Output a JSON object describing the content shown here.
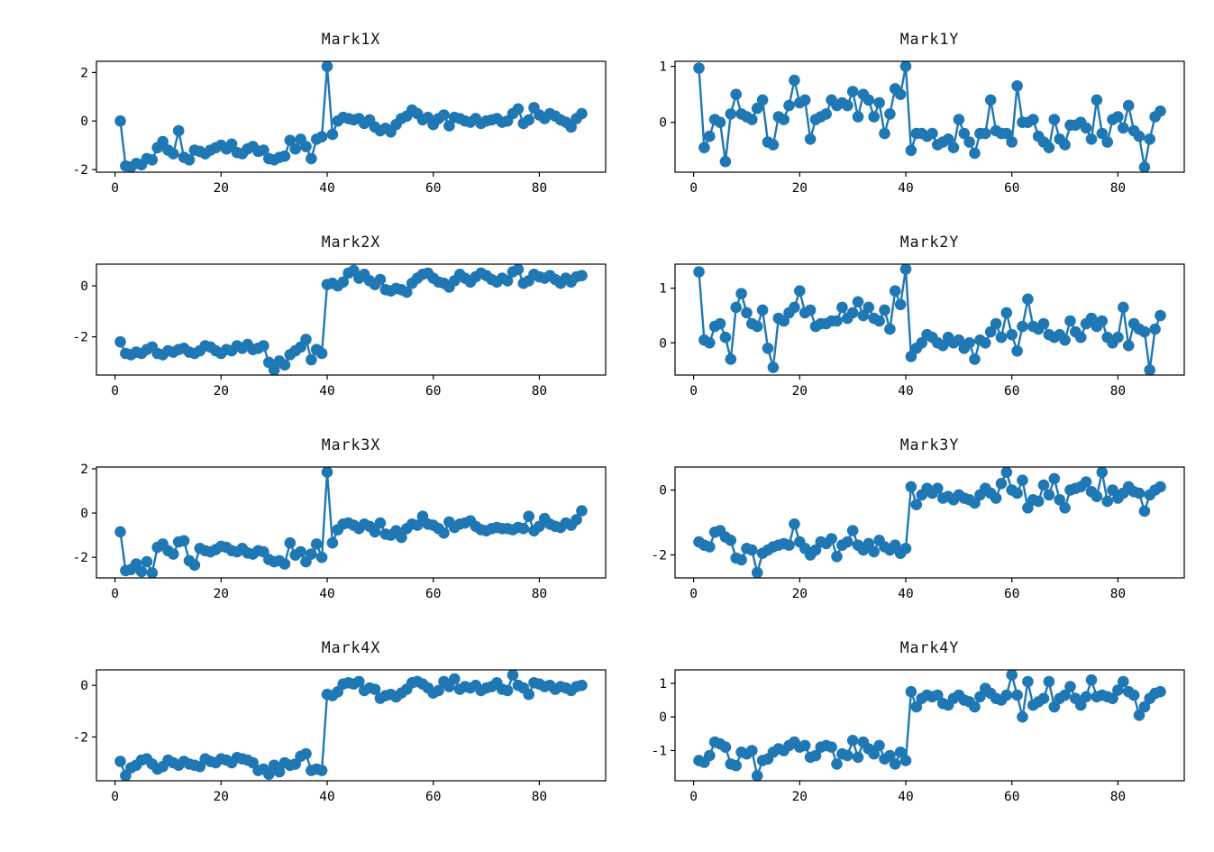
{
  "figure": {
    "background": "#ffffff",
    "series_color": "#1f77b4",
    "axes_color": "#000000",
    "marker": "circle",
    "marker_radius": 6.3,
    "line_width": 2.4
  },
  "chart_data": [
    {
      "type": "line",
      "title": "Mark1X",
      "xlabel": "",
      "ylabel": "",
      "grid": false,
      "legend": null,
      "x_start": 1,
      "xticks": [
        0,
        20,
        40,
        60,
        80
      ],
      "yticks": [
        -2,
        0,
        2
      ],
      "xlim": [
        -3.5,
        92.5
      ],
      "ylim": [
        -2.11,
        2.46
      ],
      "values": [
        0.0,
        -1.85,
        -1.9,
        -1.75,
        -1.8,
        -1.55,
        -1.6,
        -1.1,
        -0.85,
        -1.2,
        -1.35,
        -0.4,
        -1.5,
        -1.6,
        -1.2,
        -1.25,
        -1.35,
        -1.2,
        -1.1,
        -1.0,
        -1.15,
        -0.95,
        -1.3,
        -1.35,
        -1.15,
        -1.05,
        -1.25,
        -1.2,
        -1.55,
        -1.6,
        -1.5,
        -1.45,
        -0.8,
        -1.15,
        -0.75,
        -1.05,
        -1.55,
        -0.75,
        -0.65,
        2.25,
        -0.55,
        0.0,
        0.15,
        0.1,
        0.05,
        0.1,
        -0.1,
        0.05,
        -0.25,
        -0.4,
        -0.3,
        -0.45,
        -0.15,
        0.1,
        0.2,
        0.45,
        0.3,
        0.05,
        0.15,
        -0.15,
        0.1,
        0.25,
        -0.2,
        0.15,
        0.1,
        0.0,
        -0.05,
        0.1,
        -0.1,
        0.0,
        0.05,
        0.1,
        -0.05,
        0.0,
        0.3,
        0.5,
        -0.1,
        0.05,
        0.55,
        0.25,
        0.1,
        0.3,
        0.2,
        0.05,
        -0.05,
        -0.25,
        0.1,
        0.3
      ]
    },
    {
      "type": "line",
      "title": "Mark1Y",
      "xlabel": "",
      "ylabel": "",
      "grid": false,
      "legend": null,
      "x_start": 1,
      "xticks": [
        0,
        20,
        40,
        60,
        80
      ],
      "yticks": [
        0,
        1
      ],
      "xlim": [
        -3.5,
        92.5
      ],
      "ylim": [
        -0.89,
        1.09
      ],
      "values": [
        0.97,
        -0.45,
        -0.25,
        0.05,
        0.0,
        -0.7,
        0.15,
        0.5,
        0.15,
        0.1,
        0.05,
        0.25,
        0.4,
        -0.35,
        -0.4,
        0.1,
        0.05,
        0.3,
        0.75,
        0.35,
        0.4,
        -0.3,
        0.05,
        0.1,
        0.15,
        0.4,
        0.3,
        0.35,
        0.3,
        0.55,
        0.1,
        0.5,
        0.4,
        0.1,
        0.35,
        -0.2,
        0.15,
        0.6,
        0.5,
        1.0,
        -0.5,
        -0.2,
        -0.2,
        -0.25,
        -0.2,
        -0.4,
        -0.35,
        -0.3,
        -0.45,
        0.05,
        -0.2,
        -0.35,
        -0.55,
        -0.2,
        -0.2,
        0.4,
        -0.15,
        -0.2,
        -0.2,
        -0.35,
        0.65,
        0.0,
        0.0,
        0.05,
        -0.25,
        -0.35,
        -0.45,
        0.05,
        -0.3,
        -0.4,
        -0.05,
        -0.05,
        0.0,
        -0.1,
        -0.3,
        0.4,
        -0.2,
        -0.35,
        0.05,
        0.1,
        -0.1,
        0.3,
        -0.15,
        -0.25,
        -0.8,
        -0.3,
        0.1,
        0.2
      ]
    },
    {
      "type": "line",
      "title": "Mark2X",
      "xlabel": "",
      "ylabel": "",
      "grid": false,
      "legend": null,
      "x_start": 1,
      "xticks": [
        0,
        20,
        40,
        60,
        80
      ],
      "yticks": [
        -2,
        0
      ],
      "xlim": [
        -3.5,
        92.5
      ],
      "ylim": [
        -3.5,
        0.85
      ],
      "values": [
        -2.2,
        -2.65,
        -2.7,
        -2.6,
        -2.65,
        -2.5,
        -2.4,
        -2.65,
        -2.7,
        -2.55,
        -2.6,
        -2.5,
        -2.45,
        -2.6,
        -2.65,
        -2.55,
        -2.35,
        -2.4,
        -2.55,
        -2.65,
        -2.5,
        -2.55,
        -2.35,
        -2.45,
        -2.3,
        -2.5,
        -2.45,
        -2.35,
        -3.0,
        -3.3,
        -2.95,
        -3.1,
        -2.7,
        -2.55,
        -2.4,
        -2.1,
        -2.9,
        -2.5,
        -2.65,
        0.05,
        0.1,
        0.0,
        0.15,
        0.5,
        0.6,
        0.3,
        0.45,
        0.2,
        0.05,
        0.25,
        -0.15,
        -0.2,
        -0.1,
        -0.15,
        -0.25,
        0.1,
        0.3,
        0.45,
        0.5,
        0.3,
        0.15,
        0.1,
        -0.05,
        0.2,
        0.45,
        0.3,
        0.15,
        0.35,
        0.5,
        0.4,
        0.25,
        0.15,
        0.3,
        0.2,
        0.55,
        0.65,
        0.1,
        0.2,
        0.45,
        0.35,
        0.3,
        0.4,
        0.25,
        0.1,
        0.3,
        0.15,
        0.35,
        0.4
      ]
    },
    {
      "type": "line",
      "title": "Mark2Y",
      "xlabel": "",
      "ylabel": "",
      "grid": false,
      "legend": null,
      "x_start": 1,
      "xticks": [
        0,
        20,
        40,
        60,
        80
      ],
      "yticks": [
        0,
        1
      ],
      "xlim": [
        -3.5,
        92.5
      ],
      "ylim": [
        -0.59,
        1.44
      ],
      "values": [
        1.3,
        0.05,
        0.0,
        0.3,
        0.35,
        0.1,
        -0.3,
        0.65,
        0.9,
        0.55,
        0.35,
        0.3,
        0.6,
        -0.1,
        -0.45,
        0.45,
        0.4,
        0.55,
        0.65,
        0.95,
        0.55,
        0.6,
        0.3,
        0.35,
        0.35,
        0.4,
        0.4,
        0.65,
        0.45,
        0.55,
        0.75,
        0.5,
        0.65,
        0.45,
        0.4,
        0.6,
        0.25,
        0.95,
        0.7,
        1.35,
        -0.25,
        -0.1,
        0.0,
        0.15,
        0.1,
        0.0,
        -0.05,
        0.1,
        0.0,
        0.05,
        -0.1,
        0.0,
        -0.3,
        0.05,
        0.0,
        0.2,
        0.35,
        0.1,
        0.55,
        0.15,
        -0.15,
        0.3,
        0.8,
        0.3,
        0.25,
        0.35,
        0.15,
        0.1,
        0.15,
        0.05,
        0.4,
        0.2,
        0.1,
        0.35,
        0.45,
        0.3,
        0.4,
        0.1,
        0.0,
        0.1,
        0.65,
        -0.05,
        0.35,
        0.25,
        0.2,
        -0.5,
        0.25,
        0.5
      ]
    },
    {
      "type": "line",
      "title": "Mark3X",
      "xlabel": "",
      "ylabel": "",
      "grid": false,
      "legend": null,
      "x_start": 1,
      "xticks": [
        0,
        20,
        40,
        60,
        80
      ],
      "yticks": [
        -2,
        0,
        2
      ],
      "xlim": [
        -3.5,
        92.5
      ],
      "ylim": [
        -2.93,
        2.08
      ],
      "values": [
        -0.85,
        -2.6,
        -2.55,
        -2.3,
        -2.65,
        -2.2,
        -2.7,
        -1.55,
        -1.4,
        -1.7,
        -1.85,
        -1.3,
        -1.25,
        -2.15,
        -2.35,
        -1.6,
        -1.7,
        -1.75,
        -1.65,
        -1.5,
        -1.55,
        -1.7,
        -1.75,
        -1.6,
        -1.8,
        -1.85,
        -1.7,
        -1.75,
        -2.1,
        -2.2,
        -2.15,
        -2.3,
        -1.35,
        -1.9,
        -1.75,
        -2.2,
        -1.85,
        -1.4,
        -2.0,
        1.85,
        -1.35,
        -0.75,
        -0.5,
        -0.45,
        -0.55,
        -0.7,
        -0.5,
        -0.6,
        -0.85,
        -0.45,
        -0.95,
        -1.0,
        -0.8,
        -1.1,
        -0.7,
        -0.5,
        -0.55,
        -0.15,
        -0.5,
        -0.55,
        -0.7,
        -0.9,
        -0.4,
        -0.65,
        -0.5,
        -0.45,
        -0.35,
        -0.6,
        -0.75,
        -0.8,
        -0.7,
        -0.65,
        -0.7,
        -0.7,
        -0.75,
        -0.65,
        -0.7,
        -0.15,
        -0.8,
        -0.6,
        -0.25,
        -0.5,
        -0.6,
        -0.65,
        -0.45,
        -0.55,
        -0.3,
        0.1
      ]
    },
    {
      "type": "line",
      "title": "Mark3Y",
      "xlabel": "",
      "ylabel": "",
      "grid": false,
      "legend": null,
      "x_start": 1,
      "xticks": [
        0,
        20,
        40,
        60,
        80
      ],
      "yticks": [
        -2,
        0
      ],
      "xlim": [
        -3.5,
        92.5
      ],
      "ylim": [
        -2.71,
        0.71
      ],
      "values": [
        -1.6,
        -1.7,
        -1.75,
        -1.3,
        -1.25,
        -1.45,
        -1.55,
        -2.1,
        -2.15,
        -1.8,
        -1.85,
        -2.55,
        -1.95,
        -1.85,
        -1.75,
        -1.7,
        -1.65,
        -1.7,
        -1.05,
        -1.6,
        -1.8,
        -2.0,
        -1.85,
        -1.6,
        -1.65,
        -1.5,
        -2.05,
        -1.7,
        -1.6,
        -1.25,
        -1.7,
        -1.85,
        -1.65,
        -1.9,
        -1.55,
        -1.75,
        -1.85,
        -1.7,
        -1.95,
        -1.8,
        0.1,
        -0.45,
        -0.15,
        0.05,
        -0.1,
        0.05,
        -0.25,
        -0.2,
        -0.3,
        -0.15,
        -0.25,
        -0.3,
        -0.4,
        -0.15,
        0.05,
        -0.1,
        -0.25,
        0.2,
        0.55,
        0.0,
        -0.1,
        0.3,
        -0.55,
        -0.3,
        -0.35,
        0.15,
        -0.15,
        0.35,
        -0.3,
        -0.55,
        0.0,
        0.05,
        0.1,
        0.25,
        -0.05,
        -0.2,
        0.55,
        -0.35,
        0.0,
        -0.25,
        -0.1,
        0.1,
        -0.05,
        -0.1,
        -0.65,
        -0.15,
        0.0,
        0.1
      ]
    },
    {
      "type": "line",
      "title": "Mark4X",
      "xlabel": "",
      "ylabel": "",
      "grid": false,
      "legend": null,
      "x_start": 1,
      "xticks": [
        0,
        20,
        40,
        60,
        80
      ],
      "yticks": [
        -2,
        0
      ],
      "xlim": [
        -3.5,
        92.5
      ],
      "ylim": [
        -3.7,
        0.6
      ],
      "values": [
        -2.95,
        -3.5,
        -3.2,
        -3.1,
        -2.9,
        -2.85,
        -3.05,
        -3.25,
        -3.15,
        -2.9,
        -3.0,
        -3.1,
        -2.95,
        -3.05,
        -3.1,
        -3.15,
        -2.85,
        -2.95,
        -3.0,
        -2.85,
        -2.9,
        -3.0,
        -2.8,
        -2.85,
        -2.9,
        -3.0,
        -3.3,
        -3.25,
        -3.45,
        -3.1,
        -3.35,
        -3.0,
        -3.1,
        -3.05,
        -2.75,
        -2.65,
        -3.3,
        -3.25,
        -3.3,
        -0.35,
        -0.4,
        -0.25,
        0.05,
        0.1,
        0.05,
        0.15,
        -0.2,
        -0.1,
        -0.15,
        -0.5,
        -0.4,
        -0.35,
        -0.45,
        -0.3,
        -0.15,
        0.1,
        0.15,
        0.05,
        -0.1,
        -0.3,
        -0.2,
        0.15,
        -0.05,
        0.25,
        -0.15,
        -0.05,
        -0.1,
        0.0,
        -0.2,
        -0.1,
        -0.05,
        0.1,
        -0.15,
        -0.2,
        0.4,
        0.0,
        -0.1,
        -0.35,
        0.1,
        0.05,
        -0.05,
        0.0,
        -0.15,
        -0.05,
        -0.1,
        -0.2,
        -0.05,
        0.0
      ]
    },
    {
      "type": "line",
      "title": "Mark4Y",
      "xlabel": "",
      "ylabel": "",
      "grid": false,
      "legend": null,
      "x_start": 1,
      "xticks": [
        0,
        20,
        40,
        60,
        80
      ],
      "yticks": [
        -1,
        0,
        1
      ],
      "xlim": [
        -3.5,
        92.5
      ],
      "ylim": [
        -1.9,
        1.4
      ],
      "values": [
        -1.3,
        -1.35,
        -1.15,
        -0.75,
        -0.8,
        -0.9,
        -1.4,
        -1.45,
        -1.05,
        -1.1,
        -1.0,
        -1.75,
        -1.3,
        -1.25,
        -1.05,
        -0.95,
        -1.0,
        -0.85,
        -0.75,
        -0.9,
        -0.85,
        -1.2,
        -1.15,
        -0.9,
        -0.85,
        -0.9,
        -1.4,
        -1.1,
        -1.15,
        -0.7,
        -1.2,
        -0.75,
        -0.95,
        -1.1,
        -0.85,
        -1.25,
        -1.15,
        -1.4,
        -1.05,
        -1.3,
        0.75,
        0.3,
        0.55,
        0.65,
        0.6,
        0.65,
        0.4,
        0.35,
        0.55,
        0.65,
        0.5,
        0.45,
        0.3,
        0.6,
        0.85,
        0.7,
        0.55,
        0.5,
        0.65,
        1.25,
        0.65,
        0.0,
        1.05,
        0.35,
        0.45,
        0.55,
        1.05,
        0.3,
        0.55,
        0.65,
        0.9,
        0.55,
        0.35,
        0.6,
        1.1,
        0.6,
        0.65,
        0.6,
        0.55,
        0.8,
        1.05,
        0.75,
        0.65,
        0.05,
        0.3,
        0.55,
        0.7,
        0.75
      ]
    }
  ]
}
